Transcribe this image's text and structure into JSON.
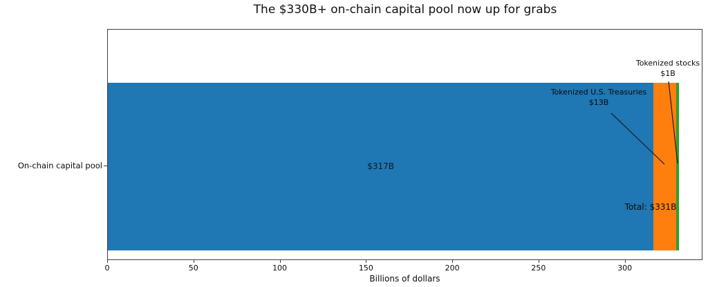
{
  "title": "The $330B+ on-chain capital pool now up for grabs",
  "chart_data": {
    "type": "bar",
    "orientation": "horizontal",
    "stacked": true,
    "title": "The $330B+ on-chain capital pool now up for grabs",
    "categories": [
      "On-chain capital pool"
    ],
    "series": [
      {
        "name": "On-chain capital pool",
        "value": 317,
        "label": "$317B",
        "color": "#1f77b4"
      },
      {
        "name": "Tokenized U.S. Treasuries",
        "value": 13,
        "label": "$13B",
        "color": "#ff7f0e"
      },
      {
        "name": "Tokenized stocks",
        "value": 1,
        "label": "$1B",
        "color": "#2ca02c"
      }
    ],
    "total_label": "Total: $331B",
    "xlabel": "Billions of dollars",
    "ylabel": "",
    "xlim": [
      0,
      345
    ],
    "xticks": [
      0,
      50,
      100,
      150,
      200,
      250,
      300
    ],
    "grid": false,
    "legend": "none"
  }
}
